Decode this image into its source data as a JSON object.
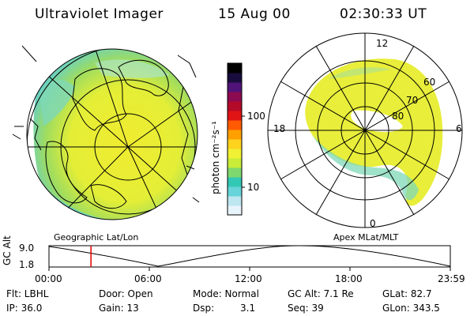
{
  "header": {
    "instrument": "Ultraviolet Imager",
    "date": "15 Aug 00",
    "time": "02:30:33 UT"
  },
  "colorbar": {
    "unit": "photon cm⁻²s⁻¹",
    "tick_labels": [
      "100",
      "10"
    ],
    "colors": [
      "#e8f4fc",
      "#bde6f0",
      "#66d4d8",
      "#33c8b4",
      "#7fd86e",
      "#c8ec38",
      "#f0f034",
      "#ffd21e",
      "#ffa000",
      "#ff5a00",
      "#e01414",
      "#b40a2a",
      "#8c0a50",
      "#501478",
      "#180c3c",
      "#000000"
    ]
  },
  "left_panel": {
    "label": "Geographic Lat/Lon"
  },
  "right_panel": {
    "label": "Apex MLat/MLT",
    "mlat_labels": [
      "80",
      "70",
      "60"
    ],
    "mlt_labels": [
      "12",
      "18",
      "6",
      "0"
    ]
  },
  "timeline": {
    "axis_label": "GC Alt",
    "y_labels": [
      "9.0",
      "1.8"
    ],
    "x_labels": [
      "00:00",
      "06:00",
      "12:00",
      "18:00",
      "23:59"
    ],
    "cursor_time": "02:30:33",
    "cursor_color": "#e00000"
  },
  "status": {
    "row1": {
      "flt": "Flt: LBHL",
      "door": "Door: Open",
      "mode": "Mode: Normal",
      "gc_alt": "GC Alt: 7.1 Re",
      "glat": "GLat: 82.7"
    },
    "row2": {
      "ip": "IP: 36.0",
      "gain": "Gain: 13",
      "dsp_label": "Dsp:",
      "dsp_value": "3.1",
      "seq": "Seq: 39",
      "glon": "GLon: 343.5"
    }
  }
}
